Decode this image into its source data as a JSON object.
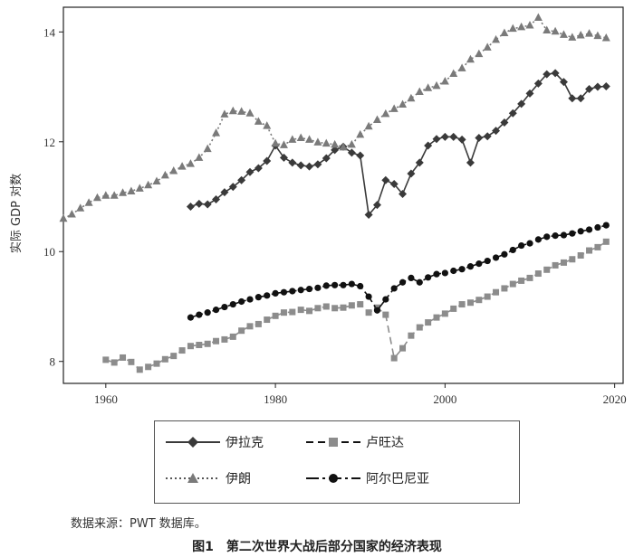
{
  "chart_data": {
    "type": "line",
    "xlabel": "",
    "ylabel": "实际 GDP 对数",
    "xlim": [
      1955,
      2021
    ],
    "ylim": [
      7.6,
      14.45
    ],
    "xticks": [
      1960,
      1980,
      2000,
      2020
    ],
    "yticks": [
      8,
      10,
      12,
      14
    ],
    "grid": false,
    "legend_position": "bottom",
    "series": [
      {
        "name": "伊拉克",
        "color": "#3a3a3a",
        "dash": "",
        "marker": "diamond",
        "x": [
          1970,
          1971,
          1972,
          1973,
          1974,
          1975,
          1976,
          1977,
          1978,
          1979,
          1980,
          1981,
          1982,
          1983,
          1984,
          1985,
          1986,
          1987,
          1988,
          1989,
          1990,
          1991,
          1992,
          1993,
          1994,
          1995,
          1996,
          1997,
          1998,
          1999,
          2000,
          2001,
          2002,
          2003,
          2004,
          2005,
          2006,
          2007,
          2008,
          2009,
          2010,
          2011,
          2012,
          2013,
          2014,
          2015,
          2016,
          2017,
          2018,
          2019
        ],
        "y": [
          10.82,
          10.87,
          10.86,
          10.95,
          11.08,
          11.18,
          11.3,
          11.45,
          11.52,
          11.65,
          11.93,
          11.71,
          11.62,
          11.57,
          11.55,
          11.59,
          11.7,
          11.85,
          11.91,
          11.8,
          11.75,
          10.67,
          10.85,
          11.3,
          11.23,
          11.05,
          11.42,
          11.62,
          11.93,
          12.05,
          12.09,
          12.09,
          12.04,
          11.62,
          12.07,
          12.1,
          12.2,
          12.35,
          12.52,
          12.69,
          12.88,
          13.06,
          13.23,
          13.25,
          13.09,
          12.79,
          12.79,
          12.96,
          13.0,
          13.01
        ]
      },
      {
        "name": "卢旺达",
        "color": "#8c8c8c",
        "dash": "8,5",
        "marker": "square",
        "x": [
          1960,
          1961,
          1962,
          1963,
          1964,
          1965,
          1966,
          1967,
          1968,
          1969,
          1970,
          1971,
          1972,
          1973,
          1974,
          1975,
          1976,
          1977,
          1978,
          1979,
          1980,
          1981,
          1982,
          1983,
          1984,
          1985,
          1986,
          1987,
          1988,
          1989,
          1990,
          1991,
          1992,
          1993,
          1994,
          1995,
          1996,
          1997,
          1998,
          1999,
          2000,
          2001,
          2002,
          2003,
          2004,
          2005,
          2006,
          2007,
          2008,
          2009,
          2010,
          2011,
          2012,
          2013,
          2014,
          2015,
          2016,
          2017,
          2018,
          2019
        ],
        "y": [
          8.03,
          7.98,
          8.07,
          7.99,
          7.85,
          7.9,
          7.96,
          8.04,
          8.1,
          8.2,
          8.28,
          8.3,
          8.32,
          8.37,
          8.4,
          8.45,
          8.56,
          8.64,
          8.68,
          8.76,
          8.83,
          8.89,
          8.9,
          8.94,
          8.92,
          8.97,
          9.0,
          8.97,
          8.98,
          9.02,
          9.04,
          8.89,
          8.98,
          8.85,
          8.06,
          8.24,
          8.47,
          8.62,
          8.71,
          8.8,
          8.87,
          8.96,
          9.04,
          9.07,
          9.12,
          9.18,
          9.26,
          9.33,
          9.41,
          9.47,
          9.52,
          9.6,
          9.67,
          9.75,
          9.8,
          9.86,
          9.93,
          10.02,
          10.08,
          10.18
        ]
      },
      {
        "name": "伊朗",
        "color": "#7a7a7a",
        "dash": "2,3",
        "marker": "triangle",
        "x": [
          1955,
          1956,
          1957,
          1958,
          1959,
          1960,
          1961,
          1962,
          1963,
          1964,
          1965,
          1966,
          1967,
          1968,
          1969,
          1970,
          1971,
          1972,
          1973,
          1974,
          1975,
          1976,
          1977,
          1978,
          1979,
          1980,
          1981,
          1982,
          1983,
          1984,
          1985,
          1986,
          1987,
          1988,
          1989,
          1990,
          1991,
          1992,
          1993,
          1994,
          1995,
          1996,
          1997,
          1998,
          1999,
          2000,
          2001,
          2002,
          2003,
          2004,
          2005,
          2006,
          2007,
          2008,
          2009,
          2010,
          2011,
          2012,
          2013,
          2014,
          2015,
          2016,
          2017,
          2018,
          2019
        ],
        "y": [
          10.6,
          10.68,
          10.79,
          10.89,
          10.98,
          11.02,
          11.02,
          11.07,
          11.1,
          11.15,
          11.21,
          11.28,
          11.39,
          11.47,
          11.55,
          11.6,
          11.71,
          11.87,
          12.16,
          12.5,
          12.56,
          12.55,
          12.52,
          12.37,
          12.29,
          11.97,
          11.94,
          12.04,
          12.07,
          12.04,
          11.99,
          11.97,
          11.95,
          11.9,
          11.95,
          12.13,
          12.28,
          12.4,
          12.51,
          12.6,
          12.68,
          12.79,
          12.91,
          12.98,
          13.02,
          13.1,
          13.24,
          13.34,
          13.5,
          13.6,
          13.72,
          13.86,
          13.98,
          14.06,
          14.09,
          14.12,
          14.26,
          14.03,
          14.01,
          13.95,
          13.9,
          13.94,
          13.97,
          13.93,
          13.89
        ]
      },
      {
        "name": "阿尔巴尼亚",
        "color": "#111111",
        "dash": "14,4,3,4",
        "marker": "circle",
        "x": [
          1970,
          1971,
          1972,
          1973,
          1974,
          1975,
          1976,
          1977,
          1978,
          1979,
          1980,
          1981,
          1982,
          1983,
          1984,
          1985,
          1986,
          1987,
          1988,
          1989,
          1990,
          1991,
          1992,
          1993,
          1994,
          1995,
          1996,
          1997,
          1998,
          1999,
          2000,
          2001,
          2002,
          2003,
          2004,
          2005,
          2006,
          2007,
          2008,
          2009,
          2010,
          2011,
          2012,
          2013,
          2014,
          2015,
          2016,
          2017,
          2018,
          2019
        ],
        "y": [
          8.8,
          8.85,
          8.89,
          8.94,
          8.99,
          9.04,
          9.09,
          9.13,
          9.17,
          9.2,
          9.24,
          9.26,
          9.28,
          9.3,
          9.32,
          9.34,
          9.38,
          9.39,
          9.39,
          9.41,
          9.37,
          9.18,
          8.93,
          9.13,
          9.33,
          9.44,
          9.52,
          9.44,
          9.53,
          9.59,
          9.61,
          9.65,
          9.68,
          9.73,
          9.78,
          9.83,
          9.89,
          9.95,
          10.03,
          10.11,
          10.15,
          10.22,
          10.27,
          10.29,
          10.3,
          10.33,
          10.37,
          10.4,
          10.44,
          10.48
        ]
      }
    ]
  },
  "legend": {
    "iraq": "伊拉克",
    "rwanda": "卢旺达",
    "iran": "伊朗",
    "albania": "阿尔巴尼亚"
  },
  "source_note": "数据来源：PWT 数据库。",
  "caption": "图1　第二次世界大战后部分国家的经济表现"
}
